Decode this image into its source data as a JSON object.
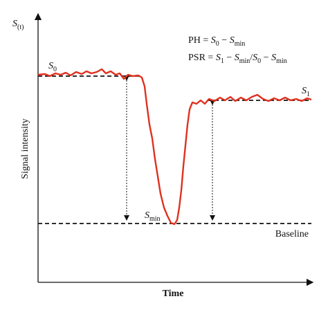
{
  "y_axis_symbol": [
    {
      "text": "S"
    },
    {
      "sub": "(t)"
    }
  ],
  "y_axis_label": "Signal intensity",
  "x_axis_label": "Time",
  "ph_formula": [
    {
      "text": "PH = "
    },
    {
      "italic": "S"
    },
    {
      "sub": "0"
    },
    {
      "text": " − "
    },
    {
      "italic": "S"
    },
    {
      "sub": "min"
    }
  ],
  "psr_formula": [
    {
      "text": "PSR = "
    },
    {
      "italic": "S"
    },
    {
      "sub": "1"
    },
    {
      "text": " − "
    },
    {
      "italic": "S"
    },
    {
      "sub": "min"
    },
    {
      "text": "/"
    },
    {
      "italic": "S"
    },
    {
      "sub": "0"
    },
    {
      "text": " − "
    },
    {
      "italic": "S"
    },
    {
      "sub": "min"
    }
  ],
  "s0_label": [
    {
      "italic": "S"
    },
    {
      "sub": "0"
    }
  ],
  "s1_label": [
    {
      "italic": "S"
    },
    {
      "sub": "1"
    }
  ],
  "smin_label": [
    {
      "italic": "S"
    },
    {
      "sub": "min"
    }
  ],
  "baseline_label": "Baseline"
}
